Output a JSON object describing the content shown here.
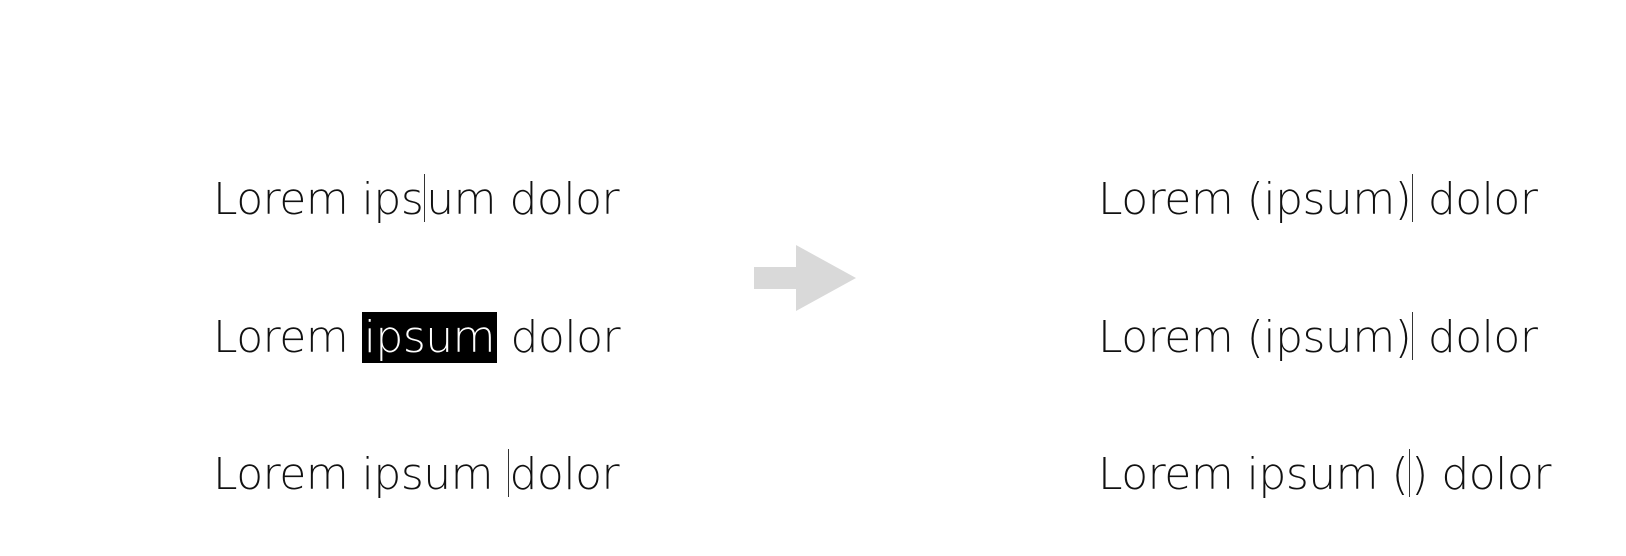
{
  "colors": {
    "background": "#ffffff",
    "text": "#111111",
    "selection": "#000000",
    "arrow": "#d9d9d9"
  },
  "before": {
    "line1": {
      "a": "Lorem ips",
      "b": "um dolor"
    },
    "line2": {
      "a": "Lorem ",
      "selected": "ipsum",
      "b": " dolor"
    },
    "line3": {
      "a": "Lorem ipsum ",
      "b": "dolor"
    }
  },
  "after": {
    "line1": {
      "a": "Lorem (ipsum)",
      "b": " dolor"
    },
    "line2": {
      "a": "Lorem (ipsum)",
      "b": " dolor"
    },
    "line3": {
      "a": "Lorem ipsum (",
      "b": ") dolor"
    }
  },
  "icons": {
    "transform": "right-arrow-icon"
  }
}
